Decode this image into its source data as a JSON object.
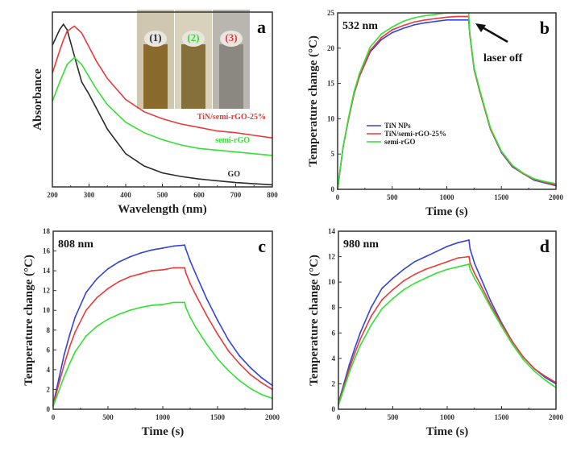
{
  "colors": {
    "TiN NPs": "#3344d8",
    "TiN/semi-rGO-25%": "#e83a3a",
    "semi-rGO": "#33e033",
    "GO": "#2a2a2a"
  },
  "chart_data": [
    {
      "panel": "a",
      "type": "line",
      "xlabel": "Wavelength (nm)",
      "ylabel": "Absorbance",
      "xlim": [
        200,
        800
      ],
      "ylim": [
        0,
        1
      ],
      "xticks": [
        200,
        300,
        400,
        500,
        600,
        700,
        800
      ],
      "y_tick_labels": false,
      "x": [
        200,
        220,
        230,
        240,
        260,
        280,
        300,
        320,
        350,
        400,
        450,
        500,
        550,
        600,
        650,
        700,
        750,
        800
      ],
      "series": [
        {
          "name": "GO",
          "color": "#2a2a2a",
          "values": [
            0.81,
            0.9,
            0.93,
            0.9,
            0.75,
            0.6,
            0.53,
            0.45,
            0.33,
            0.19,
            0.12,
            0.08,
            0.06,
            0.045,
            0.035,
            0.025,
            0.018,
            0.012
          ]
        },
        {
          "name": "TiN/semi-rGO-25%",
          "color": "#e83a3a",
          "values": [
            0.65,
            0.78,
            0.84,
            0.89,
            0.92,
            0.88,
            0.8,
            0.72,
            0.62,
            0.5,
            0.43,
            0.39,
            0.36,
            0.34,
            0.32,
            0.31,
            0.295,
            0.28
          ]
        },
        {
          "name": "semi-rGO",
          "color": "#33e033",
          "values": [
            0.49,
            0.6,
            0.65,
            0.7,
            0.74,
            0.7,
            0.63,
            0.56,
            0.47,
            0.37,
            0.31,
            0.27,
            0.24,
            0.22,
            0.21,
            0.2,
            0.19,
            0.18
          ]
        }
      ],
      "inset": {
        "vials": [
          {
            "label": "(1)",
            "color": "#2a2a2a"
          },
          {
            "label": "(2)",
            "color": "#33e033"
          },
          {
            "label": "(3)",
            "color": "#e83a3a"
          }
        ]
      }
    },
    {
      "panel": "b",
      "type": "line",
      "annotation": "532 nm",
      "arrow_label": "laser off",
      "xlabel": "Time (s)",
      "ylabel": "Temperature change (°C)",
      "xlim": [
        0,
        2000
      ],
      "ylim": [
        0,
        25
      ],
      "xticks": [
        0,
        500,
        1000,
        1500,
        2000
      ],
      "yticks": [
        0,
        5,
        10,
        15,
        20,
        25
      ],
      "legend": "center-left",
      "x": [
        0,
        50,
        100,
        150,
        200,
        300,
        400,
        500,
        600,
        700,
        800,
        900,
        1000,
        1100,
        1200,
        1210,
        1250,
        1300,
        1400,
        1500,
        1600,
        1700,
        1800,
        1900,
        2000
      ],
      "series": [
        {
          "name": "TiN NPs",
          "color": "#3344d8",
          "values": [
            0,
            6,
            10,
            13.5,
            16,
            19.5,
            21.2,
            22.2,
            22.8,
            23.3,
            23.6,
            23.8,
            24,
            24,
            24,
            22,
            17,
            14,
            8.5,
            5.2,
            3.2,
            2.2,
            1.3,
            0.9,
            0.5
          ]
        },
        {
          "name": "TiN/semi-rGO-25%",
          "color": "#e83a3a",
          "values": [
            0,
            6,
            10,
            13.5,
            16,
            19.7,
            21.5,
            22.6,
            23.2,
            23.7,
            24,
            24.2,
            24.4,
            24.5,
            24.5,
            22,
            17,
            14,
            8.5,
            5.3,
            3.3,
            2.2,
            1.4,
            1.0,
            0.6
          ]
        },
        {
          "name": "semi-rGO",
          "color": "#33e033",
          "values": [
            0,
            6,
            10.2,
            13.8,
            16.4,
            20.2,
            22,
            23,
            23.8,
            24.3,
            24.6,
            24.8,
            25,
            25,
            25,
            22.2,
            17.2,
            14.2,
            8.7,
            5.4,
            3.4,
            2.3,
            1.5,
            1.1,
            0.8
          ]
        }
      ]
    },
    {
      "panel": "c",
      "type": "line",
      "annotation": "808 nm",
      "xlabel": "Time (s)",
      "ylabel": "Temperature change (°C)",
      "xlim": [
        0,
        2000
      ],
      "ylim": [
        0,
        18
      ],
      "xticks": [
        0,
        500,
        1000,
        1500,
        2000
      ],
      "yticks": [
        0,
        2,
        4,
        6,
        8,
        10,
        12,
        14,
        16,
        18
      ],
      "x": [
        0,
        50,
        100,
        150,
        200,
        300,
        400,
        500,
        600,
        700,
        800,
        900,
        1000,
        1100,
        1200,
        1210,
        1250,
        1300,
        1400,
        1500,
        1600,
        1700,
        1800,
        1900,
        2000
      ],
      "series": [
        {
          "color": "#3344d8",
          "values": [
            0.5,
            3,
            5.5,
            7.5,
            9.3,
            11.8,
            13.2,
            14.2,
            14.9,
            15.4,
            15.8,
            16.1,
            16.3,
            16.5,
            16.6,
            16.2,
            15,
            13.7,
            11.2,
            9,
            7,
            5.4,
            4.2,
            3.2,
            2.4
          ]
        },
        {
          "color": "#e83a3a",
          "values": [
            0.4,
            2.5,
            4.5,
            6.3,
            7.8,
            10,
            11.3,
            12.2,
            12.9,
            13.4,
            13.7,
            14,
            14.1,
            14.3,
            14.3,
            13.8,
            12.7,
            11.6,
            9.5,
            7.6,
            5.9,
            4.6,
            3.5,
            2.7,
            2.0
          ]
        },
        {
          "color": "#33e033",
          "values": [
            0.3,
            1.8,
            3.3,
            4.6,
            5.8,
            7.4,
            8.4,
            9.1,
            9.6,
            10,
            10.3,
            10.5,
            10.6,
            10.8,
            10.8,
            10.3,
            9.3,
            8.3,
            6.6,
            5.1,
            3.9,
            2.9,
            2.1,
            1.5,
            1.1
          ]
        }
      ]
    },
    {
      "panel": "d",
      "type": "line",
      "annotation": "980 nm",
      "xlabel": "Time (s)",
      "ylabel": "Temperature change (°C)",
      "xlim": [
        0,
        2000
      ],
      "ylim": [
        0,
        14
      ],
      "xticks": [
        0,
        500,
        1000,
        1500,
        2000
      ],
      "yticks": [
        0,
        2,
        4,
        6,
        8,
        10,
        12,
        14
      ],
      "x": [
        0,
        50,
        100,
        150,
        200,
        300,
        400,
        500,
        600,
        700,
        800,
        900,
        1000,
        1100,
        1200,
        1210,
        1250,
        1300,
        1400,
        1500,
        1600,
        1700,
        1800,
        1900,
        2000
      ],
      "series": [
        {
          "color": "#3344d8",
          "values": [
            0.5,
            2,
            3.5,
            4.8,
            6,
            8,
            9.5,
            10.3,
            11,
            11.6,
            12,
            12.4,
            12.8,
            13.1,
            13.3,
            12.6,
            11.5,
            10.5,
            8.5,
            6.8,
            5.3,
            4.1,
            3.2,
            2.5,
            2.0
          ]
        },
        {
          "color": "#e83a3a",
          "values": [
            0.4,
            1.8,
            3.2,
            4.4,
            5.5,
            7.3,
            8.6,
            9.4,
            10.1,
            10.6,
            11,
            11.3,
            11.6,
            11.9,
            12,
            11.5,
            10.7,
            9.9,
            8.2,
            6.7,
            5.3,
            4.1,
            3.2,
            2.6,
            2.1
          ]
        },
        {
          "color": "#33e033",
          "values": [
            0.3,
            1.6,
            2.9,
            4,
            5,
            6.6,
            7.9,
            8.7,
            9.4,
            9.9,
            10.3,
            10.7,
            11,
            11.2,
            11.4,
            11,
            10.3,
            9.6,
            8,
            6.5,
            5.1,
            3.9,
            3,
            2.3,
            1.7
          ]
        }
      ]
    }
  ]
}
